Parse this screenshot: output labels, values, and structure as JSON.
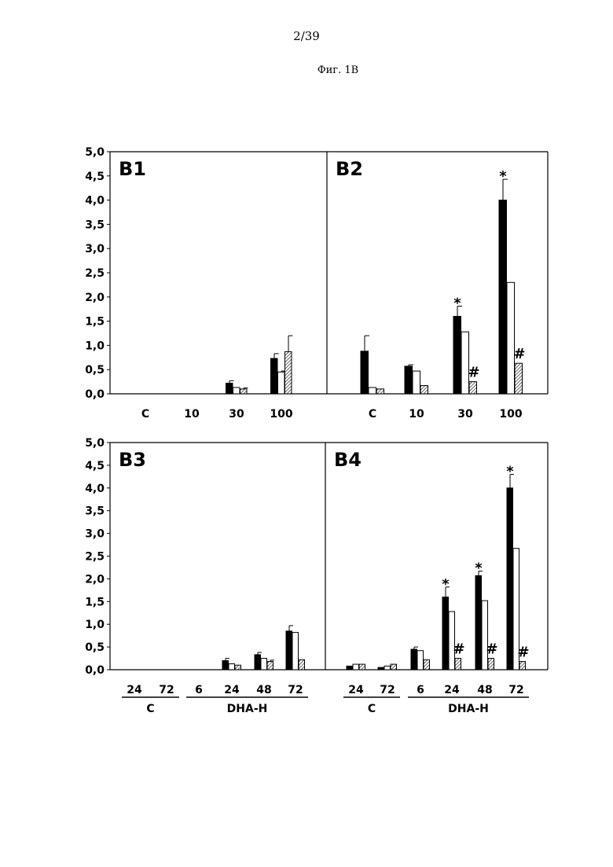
{
  "page_number": "2/39",
  "figure_caption": "Фиг. 1В",
  "chart_data": [
    {
      "type": "bar",
      "panel": "B1",
      "categories": [
        "C",
        "10",
        "30",
        "100"
      ],
      "series": [
        {
          "fill": "#000000",
          "values": [
            0,
            0,
            0.22,
            0.73
          ],
          "errors": [
            0,
            0,
            0.05,
            0.1
          ]
        },
        {
          "fill": "#ffffff",
          "values": [
            0,
            0,
            0.13,
            0.45
          ],
          "errors": [
            0,
            0,
            0,
            0.02
          ]
        },
        {
          "fill": "hatched",
          "values": [
            0,
            0,
            0.1,
            0.87
          ],
          "errors": [
            0,
            0,
            0.02,
            0.33
          ]
        }
      ],
      "ylim": [
        0,
        5
      ],
      "yticks": [
        "0,0",
        "0,5",
        "1,0",
        "1,5",
        "2,0",
        "2,5",
        "3,0",
        "3,5",
        "4,0",
        "4,5",
        "5,0"
      ],
      "annotations": [],
      "groups": []
    },
    {
      "type": "bar",
      "panel": "B2",
      "categories": [
        "C",
        "10",
        "30",
        "100"
      ],
      "series": [
        {
          "fill": "#000000",
          "values": [
            0.88,
            0.57,
            1.6,
            4.0
          ],
          "errors": [
            0.32,
            0.03,
            0.21,
            0.43
          ]
        },
        {
          "fill": "#ffffff",
          "values": [
            0.13,
            0.47,
            1.28,
            2.3
          ],
          "errors": [
            0,
            0,
            0,
            0
          ]
        },
        {
          "fill": "hatched",
          "values": [
            0.1,
            0.17,
            0.25,
            0.63
          ],
          "errors": [
            0,
            0,
            0,
            0
          ]
        }
      ],
      "ylim": [
        0,
        5
      ],
      "yticks": [],
      "annotations": [
        {
          "text": "*",
          "category": 2,
          "series": 0
        },
        {
          "text": "#",
          "category": 2,
          "series": 2
        },
        {
          "text": "*",
          "category": 3,
          "series": 0
        },
        {
          "text": "#",
          "category": 3,
          "series": 2
        }
      ],
      "groups": []
    },
    {
      "type": "bar",
      "panel": "B3",
      "categories": [
        "24",
        "72",
        "6",
        "24",
        "48",
        "72"
      ],
      "series": [
        {
          "fill": "#000000",
          "values": [
            0,
            0,
            0,
            0.2,
            0.33,
            0.85
          ],
          "errors": [
            0,
            0,
            0,
            0.05,
            0.05,
            0.12
          ]
        },
        {
          "fill": "#ffffff",
          "values": [
            0,
            0,
            0,
            0.13,
            0.25,
            0.82
          ],
          "errors": [
            0,
            0,
            0,
            0,
            0,
            0
          ]
        },
        {
          "fill": "hatched",
          "values": [
            0,
            0,
            0,
            0.1,
            0.18,
            0.22
          ],
          "errors": [
            0,
            0,
            0,
            0,
            0.03,
            0
          ]
        }
      ],
      "ylim": [
        0,
        5
      ],
      "yticks": [
        "0,0",
        "0,5",
        "1,0",
        "1,5",
        "2,0",
        "2,5",
        "3,0",
        "3,5",
        "4,0",
        "4,5",
        "5,0"
      ],
      "annotations": [],
      "groups": [
        {
          "label": "C",
          "from": 0,
          "to": 1
        },
        {
          "label": "DHA-H",
          "from": 2,
          "to": 5
        }
      ]
    },
    {
      "type": "bar",
      "panel": "B4",
      "categories": [
        "24",
        "72",
        "6",
        "24",
        "48",
        "72"
      ],
      "series": [
        {
          "fill": "#000000",
          "values": [
            0.08,
            0.05,
            0.45,
            1.6,
            2.07,
            4.0
          ],
          "errors": [
            0,
            0,
            0.05,
            0.22,
            0.1,
            0.3
          ]
        },
        {
          "fill": "#ffffff",
          "values": [
            0.12,
            0.08,
            0.42,
            1.28,
            1.52,
            2.67
          ],
          "errors": [
            0,
            0,
            0,
            0,
            0,
            0
          ]
        },
        {
          "fill": "hatched",
          "values": [
            0.12,
            0.12,
            0.22,
            0.25,
            0.25,
            0.18
          ],
          "errors": [
            0,
            0,
            0,
            0,
            0,
            0
          ]
        }
      ],
      "ylim": [
        0,
        5
      ],
      "yticks": [],
      "annotations": [
        {
          "text": "*",
          "category": 3,
          "series": 0
        },
        {
          "text": "#",
          "category": 3,
          "series": 2
        },
        {
          "text": "*",
          "category": 4,
          "series": 0
        },
        {
          "text": "#",
          "category": 4,
          "series": 2
        },
        {
          "text": "*",
          "category": 5,
          "series": 0
        },
        {
          "text": "#",
          "category": 5,
          "series": 2
        }
      ],
      "groups": [
        {
          "label": "C",
          "from": 0,
          "to": 1
        },
        {
          "label": "DHA-H",
          "from": 2,
          "to": 5
        }
      ]
    }
  ]
}
